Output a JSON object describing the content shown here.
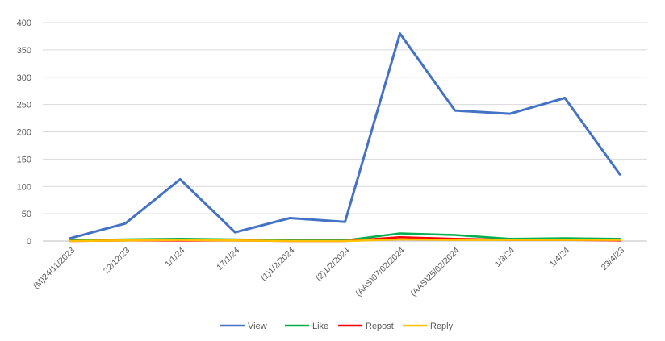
{
  "chart_data": {
    "type": "line",
    "title": "",
    "xlabel": "",
    "ylabel": "",
    "ylim": [
      0,
      400
    ],
    "y_ticks": [
      "0",
      "50",
      "100",
      "150",
      "200",
      "250",
      "300",
      "350",
      "400"
    ],
    "grid": "horizontal",
    "legend_position": "bottom",
    "categories": [
      "(M)24/11/2023",
      "22/12/23",
      "1/1/24",
      "17/1/24",
      "(1)1/2/2024",
      "(2)1/2/2024",
      "(AAS)07/02/2024",
      "(AAS)25/02/2024",
      "1/3/24",
      "1/4/24",
      "23/4/23"
    ],
    "series": [
      {
        "name": "View",
        "color": "#4472C4",
        "values": [
          5,
          32,
          113,
          16,
          42,
          35,
          380,
          239,
          233,
          262,
          122
        ]
      },
      {
        "name": "Like",
        "color": "#00B050",
        "values": [
          1,
          3,
          4,
          3,
          1,
          1,
          14,
          11,
          4,
          5,
          4
        ]
      },
      {
        "name": "Repost",
        "color": "#FF0000",
        "values": [
          0,
          1,
          1,
          1,
          0,
          0,
          7,
          4,
          2,
          2,
          1
        ]
      },
      {
        "name": "Reply",
        "color": "#FFC000",
        "values": [
          0,
          1,
          2,
          1,
          0,
          0,
          3,
          2,
          2,
          2,
          2
        ]
      }
    ]
  }
}
